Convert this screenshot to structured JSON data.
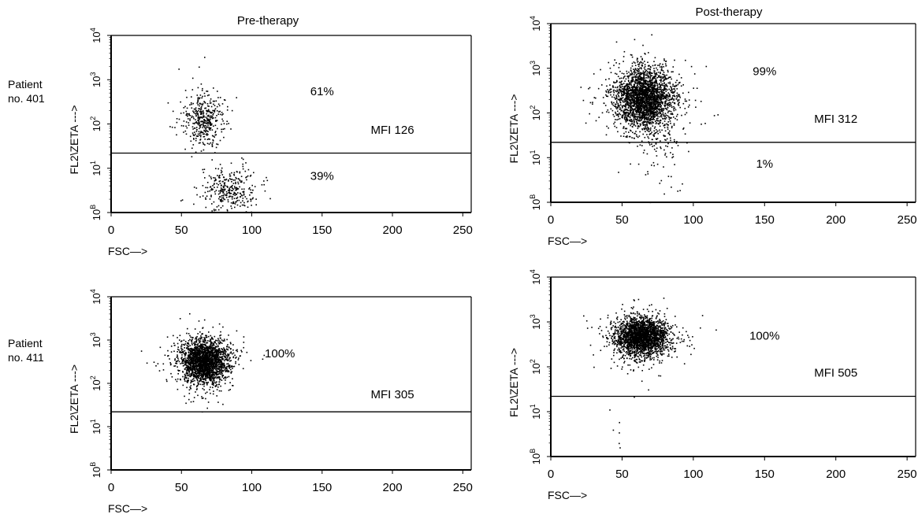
{
  "column_titles": [
    "Pre-therapy",
    "Post-therapy"
  ],
  "row_labels": [
    [
      "Patient",
      "no. 401"
    ],
    [
      "Patient",
      "no. 411"
    ]
  ],
  "chart_data": [
    {
      "type": "scatter",
      "title": "Pre-therapy",
      "patient": "Patient no. 401",
      "xlabel": "FSC—>",
      "ylabel": "FL2\\ZETA --->",
      "xlim": [
        0,
        256
      ],
      "ylim": [
        1,
        10000
      ],
      "yscale": "log",
      "xticks": [
        "0",
        "50",
        "100",
        "150",
        "200",
        "250"
      ],
      "ytick_base": "10",
      "ytick_exponents": [
        "B",
        "1",
        "2",
        "3",
        "4"
      ],
      "gate_y": 22,
      "annotations": [
        {
          "text": "61%",
          "x": 150,
          "y": 450
        },
        {
          "text": "MFI 126",
          "x": 200,
          "y": 60
        },
        {
          "text": "39%",
          "x": 150,
          "y": 5.5
        }
      ],
      "clusters": [
        {
          "x": 65,
          "y": 130,
          "sx": 7,
          "sy": 0.28,
          "n": 420
        },
        {
          "x": 83,
          "y": 3.5,
          "sx": 9,
          "sy": 0.22,
          "n": 320
        }
      ]
    },
    {
      "type": "scatter",
      "title": "Post-therapy",
      "patient": "Patient no. 401",
      "xlabel": "FSC—>",
      "ylabel": "FL2\\ZETA --->",
      "xlim": [
        0,
        256
      ],
      "ylim": [
        1,
        10000
      ],
      "yscale": "log",
      "xticks": [
        "0",
        "50",
        "100",
        "150",
        "200",
        "250"
      ],
      "ytick_base": "10",
      "ytick_exponents": [
        "B",
        "1",
        "2",
        "3",
        "4"
      ],
      "gate_y": 22,
      "annotations": [
        {
          "text": "99%",
          "x": 150,
          "y": 700
        },
        {
          "text": "MFI 312",
          "x": 200,
          "y": 60
        },
        {
          "text": "1%",
          "x": 150,
          "y": 6
        }
      ],
      "clusters": [
        {
          "x": 65,
          "y": 220,
          "sx": 10,
          "sy": 0.33,
          "n": 2600
        },
        {
          "x": 78,
          "y": 25,
          "sx": 8,
          "sy": 0.5,
          "n": 90
        }
      ]
    },
    {
      "type": "scatter",
      "title": "",
      "patient": "Patient no. 411",
      "xlabel": "FSC—>",
      "ylabel": "FL2\\ZETA --->",
      "xlim": [
        0,
        256
      ],
      "ylim": [
        1,
        10000
      ],
      "yscale": "log",
      "xticks": [
        "0",
        "50",
        "100",
        "150",
        "200",
        "250"
      ],
      "ytick_base": "10",
      "ytick_exponents": [
        "B",
        "1",
        "2",
        "3",
        "4"
      ],
      "gate_y": 22,
      "annotations": [
        {
          "text": "100%",
          "x": 120,
          "y": 400
        },
        {
          "text": "MFI 305",
          "x": 200,
          "y": 45
        }
      ],
      "clusters": [
        {
          "x": 66,
          "y": 330,
          "sx": 8,
          "sy": 0.25,
          "n": 2300
        }
      ]
    },
    {
      "type": "scatter",
      "title": "",
      "patient": "Patient no. 411",
      "xlabel": "FSC—>",
      "ylabel": "FL2\\ZETA --->",
      "xlim": [
        0,
        256
      ],
      "ylim": [
        1,
        10000
      ],
      "yscale": "log",
      "xticks": [
        "0",
        "50",
        "100",
        "150",
        "200",
        "250"
      ],
      "ytick_base": "10",
      "ytick_exponents": [
        "B",
        "1",
        "2",
        "3",
        "4"
      ],
      "gate_y": 22,
      "annotations": [
        {
          "text": "100%",
          "x": 150,
          "y": 400
        },
        {
          "text": "MFI 505",
          "x": 200,
          "y": 60
        }
      ],
      "clusters": [
        {
          "x": 63,
          "y": 480,
          "sx": 9,
          "sy": 0.2,
          "n": 2400
        },
        {
          "x": 45,
          "y": 3,
          "sx": 3,
          "sy": 0.3,
          "n": 6
        }
      ]
    }
  ]
}
